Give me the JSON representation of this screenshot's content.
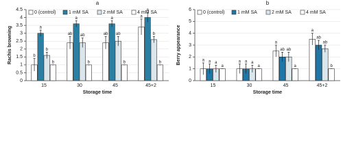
{
  "chart_data": [
    {
      "type": "bar",
      "title": "a",
      "xlabel": "Storage time",
      "ylabel": "Rachis browning",
      "categories": [
        "15",
        "30",
        "45",
        "45+2"
      ],
      "ylim": [
        0,
        4.5
      ],
      "yticks": [
        0,
        0.5,
        1,
        1.5,
        2,
        2.5,
        3,
        3.5,
        4,
        4.5
      ],
      "series": [
        {
          "name": "0 (control)",
          "color": "#ffffff",
          "values": [
            1.0,
            2.4,
            2.4,
            3.4
          ],
          "errors": [
            0.4,
            0.4,
            0.4,
            0.5
          ],
          "letters": [
            "b",
            "ab",
            "ab",
            "a"
          ]
        },
        {
          "name": "1 mM SA",
          "color": "#2b7fa3",
          "values": [
            3.0,
            3.6,
            3.6,
            4.0
          ],
          "errors": [
            0.2,
            0.2,
            0.2,
            0.3
          ],
          "letters": [
            "a",
            "a",
            "a",
            "a"
          ]
        },
        {
          "name": "2 mM SA",
          "color": "#dbe6ec",
          "values": [
            1.6,
            2.4,
            2.5,
            2.6
          ],
          "errors": [
            0.2,
            0.3,
            0.3,
            0.2
          ],
          "letters": [
            "b",
            "ab",
            "ab",
            "b"
          ]
        },
        {
          "name": "4 mM SA",
          "color": "#ffffff",
          "values": [
            1.0,
            1.0,
            1.0,
            1.0
          ],
          "errors": [
            0.0,
            0.0,
            0.0,
            0.0
          ],
          "letters": [
            "b",
            "b",
            "b",
            "b"
          ]
        }
      ]
    },
    {
      "type": "bar",
      "title": "b",
      "xlabel": "Storage time",
      "ylabel": "Berry appearance",
      "categories": [
        "15",
        "30",
        "45",
        "45+2"
      ],
      "ylim": [
        0,
        6
      ],
      "yticks": [
        0,
        1,
        2,
        3,
        4,
        5,
        6
      ],
      "series": [
        {
          "name": "0 (control)",
          "color": "#ffffff",
          "values": [
            1.0,
            1.0,
            2.5,
            3.5
          ],
          "errors": [
            0.5,
            0.4,
            0.5,
            0.5
          ],
          "letters": [
            "a",
            "a",
            "a",
            "a"
          ]
        },
        {
          "name": "1 mM SA",
          "color": "#1f77a8",
          "values": [
            1.0,
            1.0,
            2.0,
            3.0
          ],
          "errors": [
            0.4,
            0.4,
            0.4,
            0.4
          ],
          "letters": [
            "a",
            "a",
            "ab",
            "ab"
          ]
        },
        {
          "name": "2 mM SA",
          "color": "#dbe6ec",
          "values": [
            1.0,
            1.0,
            2.0,
            2.7
          ],
          "errors": [
            0.3,
            0.3,
            0.4,
            0.3
          ],
          "letters": [
            "a",
            "a",
            "ab",
            "ab"
          ]
        },
        {
          "name": "4 mM SA",
          "color": "#ffffff",
          "values": [
            1.0,
            1.0,
            1.0,
            1.0
          ],
          "errors": [
            0.0,
            0.0,
            0.0,
            0.0
          ],
          "letters": [
            "a",
            "a",
            "a",
            "b"
          ]
        }
      ]
    }
  ]
}
